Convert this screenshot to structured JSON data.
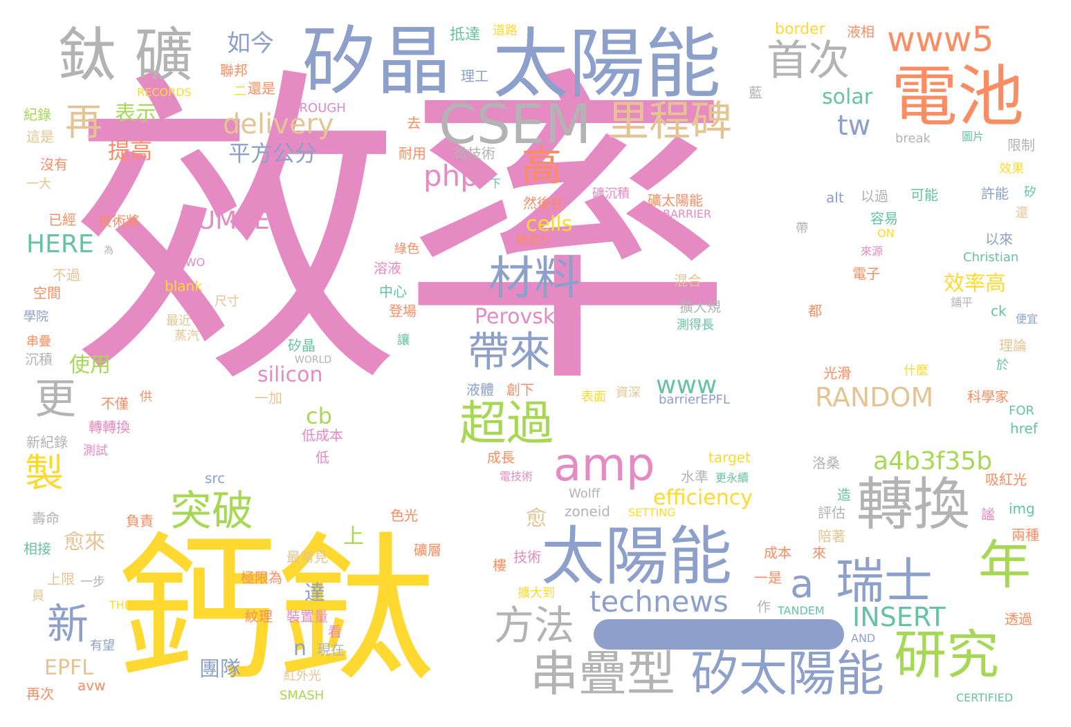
{
  "palette": {
    "pink": "#e58ac2",
    "yellow": "#ffd92f",
    "blue": "#8da0cb",
    "gray": "#b3b3b3",
    "orange": "#fc8d62",
    "green": "#a6d854",
    "tan": "#e5c494",
    "teal": "#66c2a5"
  },
  "words": [
    {
      "text": "效率",
      "color": "pink"
    },
    {
      "text": "鈣鈦",
      "color": "yellow"
    },
    {
      "text": "太陽能",
      "color": "blue"
    },
    {
      "text": "矽晶",
      "color": "blue"
    },
    {
      "text": "鈦 礦",
      "color": "gray"
    },
    {
      "text": "電池",
      "color": "orange"
    },
    {
      "text": "CSEM",
      "color": "gray"
    },
    {
      "text": "太陽能",
      "color": "blue"
    },
    {
      "text": "轉換",
      "color": "gray"
    },
    {
      "text": "研究",
      "color": "green"
    },
    {
      "text": "串疊型",
      "color": "gray"
    },
    {
      "text": "矽太陽能",
      "color": "blue"
    },
    {
      "text": "瑞士",
      "color": "blue"
    },
    {
      "text": "年",
      "color": "green"
    },
    {
      "text": "amp",
      "color": "pink"
    },
    {
      "text": "里程碑",
      "color": "tan"
    },
    {
      "text": "材料",
      "color": "blue"
    },
    {
      "text": "首次",
      "color": "gray"
    },
    {
      "text": "www5",
      "color": "orange"
    },
    {
      "text": "超過",
      "color": "green"
    },
    {
      "text": "突破",
      "color": "green"
    },
    {
      "text": "帶來",
      "color": "blue"
    },
    {
      "text": "方法",
      "color": "gray"
    },
    {
      "text": "高",
      "color": "orange"
    },
    {
      "text": "新",
      "color": "blue"
    },
    {
      "text": "更",
      "color": "gray"
    },
    {
      "text": "再",
      "color": "tan"
    },
    {
      "text": "製",
      "color": "yellow"
    },
    {
      "text": "technews",
      "color": "blue"
    },
    {
      "text": "a4b3f35b",
      "color": "green"
    },
    {
      "text": "a",
      "color": "blue"
    },
    {
      "text": "RANDOM",
      "color": "tan"
    },
    {
      "text": "INSERT",
      "color": "teal"
    },
    {
      "text": "delivery",
      "color": "tan"
    },
    {
      "text": "NUMBER",
      "color": "pink"
    },
    {
      "text": "HERE",
      "color": "teal"
    },
    {
      "text": "平方公分",
      "color": "blue"
    },
    {
      "text": "如今",
      "color": "blue"
    },
    {
      "text": "提高",
      "color": "orange"
    },
    {
      "text": "表示",
      "color": "green"
    },
    {
      "text": "php",
      "color": "pink"
    },
    {
      "text": "tw",
      "color": "blue"
    },
    {
      "text": "solar",
      "color": "teal"
    },
    {
      "text": "cells",
      "color": "yellow"
    },
    {
      "text": "Perovskite",
      "color": "pink"
    },
    {
      "text": "效率高",
      "color": "yellow"
    },
    {
      "text": "silicon",
      "color": "pink"
    },
    {
      "text": "www",
      "color": "teal"
    },
    {
      "text": "cb",
      "color": "green"
    },
    {
      "text": "使用",
      "color": "green"
    },
    {
      "text": "efficiency",
      "color": "yellow"
    },
    {
      "text": "EPFL",
      "color": "tan"
    },
    {
      "text": "團隊",
      "color": "blue"
    },
    {
      "text": "n",
      "color": "blue"
    },
    {
      "text": "愈",
      "color": "tan"
    },
    {
      "text": "愈來",
      "color": "tan"
    },
    {
      "text": "上",
      "color": "green"
    },
    {
      "text": "達",
      "color": "blue"
    },
    {
      "text": "border",
      "color": "yellow"
    },
    {
      "text": "液相",
      "color": "orange"
    },
    {
      "text": "抵達",
      "color": "teal"
    },
    {
      "text": "道路",
      "color": "yellow"
    },
    {
      "text": "理工",
      "color": "blue"
    },
    {
      "text": "聯邦",
      "color": "orange"
    },
    {
      "text": "RECORDS",
      "color": "yellow"
    },
    {
      "text": "二",
      "color": "yellow"
    },
    {
      "text": "還是",
      "color": "orange"
    },
    {
      "text": "藍",
      "color": "gray"
    },
    {
      "text": "紀錄",
      "color": "green"
    },
    {
      "text": "THROUGH",
      "color": "pink"
    },
    {
      "text": "這是",
      "color": "tan"
    },
    {
      "text": "去",
      "color": "orange"
    },
    {
      "text": "break",
      "color": "gray"
    },
    {
      "text": "圖片",
      "color": "teal"
    },
    {
      "text": "限制",
      "color": "gray"
    },
    {
      "text": "沒有",
      "color": "orange"
    },
    {
      "text": "耐用",
      "color": "orange"
    },
    {
      "text": "微技術",
      "color": "gray"
    },
    {
      "text": "效果",
      "color": "yellow"
    },
    {
      "text": "一大",
      "color": "tan"
    },
    {
      "text": "下",
      "color": "teal"
    },
    {
      "text": "礦沉積",
      "color": "pink"
    },
    {
      "text": "礦太陽能",
      "color": "orange"
    },
    {
      "text": "alt",
      "color": "blue"
    },
    {
      "text": "以過",
      "color": "gray"
    },
    {
      "text": "可能",
      "color": "teal"
    },
    {
      "text": "許能",
      "color": "blue"
    },
    {
      "text": "矽",
      "color": "teal"
    },
    {
      "text": "已經",
      "color": "orange"
    },
    {
      "text": "技術將",
      "color": "orange"
    },
    {
      "text": "然後在",
      "color": "orange"
    },
    {
      "text": "BARRIER",
      "color": "pink"
    },
    {
      "text": "容易",
      "color": "teal"
    },
    {
      "text": "還",
      "color": "tan"
    },
    {
      "text": "期潛力",
      "color": "orange"
    },
    {
      "text": "帶",
      "color": "gray"
    },
    {
      "text": "ON",
      "color": "yellow"
    },
    {
      "text": "以來",
      "color": "blue"
    },
    {
      "text": "為",
      "color": "gray"
    },
    {
      "text": "綠色",
      "color": "orange"
    },
    {
      "text": "來源",
      "color": "pink"
    },
    {
      "text": "Christian",
      "color": "teal"
    },
    {
      "text": "不過",
      "color": "tan"
    },
    {
      "text": "TWO",
      "color": "pink"
    },
    {
      "text": "溶液",
      "color": "pink"
    },
    {
      "text": "混合",
      "color": "tan"
    },
    {
      "text": "電子",
      "color": "orange"
    },
    {
      "text": "空間",
      "color": "orange"
    },
    {
      "text": "blank",
      "color": "yellow"
    },
    {
      "text": "尺寸",
      "color": "tan"
    },
    {
      "text": "中心",
      "color": "teal"
    },
    {
      "text": "擴大規",
      "color": "gray"
    },
    {
      "text": "鋪平",
      "color": "gray"
    },
    {
      "text": "學院",
      "color": "blue"
    },
    {
      "text": "最近",
      "color": "tan"
    },
    {
      "text": "登場",
      "color": "orange"
    },
    {
      "text": "測得長",
      "color": "teal"
    },
    {
      "text": "都",
      "color": "orange"
    },
    {
      "text": "ck",
      "color": "teal"
    },
    {
      "text": "便宜",
      "color": "blue"
    },
    {
      "text": "蒸汽",
      "color": "tan"
    },
    {
      "text": "串疊",
      "color": "orange"
    },
    {
      "text": "矽晶",
      "color": "teal"
    },
    {
      "text": "讓",
      "color": "teal"
    },
    {
      "text": "理論",
      "color": "tan"
    },
    {
      "text": "沉積",
      "color": "gray"
    },
    {
      "text": "WORLD",
      "color": "gray"
    },
    {
      "text": "於",
      "color": "teal"
    },
    {
      "text": "光滑",
      "color": "orange"
    },
    {
      "text": "什麼",
      "color": "yellow"
    },
    {
      "text": "不僅",
      "color": "orange"
    },
    {
      "text": "供",
      "color": "orange"
    },
    {
      "text": "一加",
      "color": "tan"
    },
    {
      "text": "液體",
      "color": "blue"
    },
    {
      "text": "創下",
      "color": "orange"
    },
    {
      "text": "表面",
      "color": "yellow"
    },
    {
      "text": "資深",
      "color": "tan"
    },
    {
      "text": "barrierEPFL",
      "color": "blue"
    },
    {
      "text": "科學家",
      "color": "orange"
    },
    {
      "text": "轉轉換",
      "color": "pink"
    },
    {
      "text": "FOR",
      "color": "teal"
    },
    {
      "text": "新紀錄",
      "color": "gray"
    },
    {
      "text": "低成本",
      "color": "pink"
    },
    {
      "text": "href",
      "color": "teal"
    },
    {
      "text": "測試",
      "color": "pink"
    },
    {
      "text": "低",
      "color": "pink"
    },
    {
      "text": "target",
      "color": "yellow"
    },
    {
      "text": "成長",
      "color": "orange"
    },
    {
      "text": "洛桑",
      "color": "gray"
    },
    {
      "text": "src",
      "color": "blue"
    },
    {
      "text": "電技術",
      "color": "pink"
    },
    {
      "text": "水準",
      "color": "gray"
    },
    {
      "text": "更永續",
      "color": "teal"
    },
    {
      "text": "吸紅光",
      "color": "orange"
    },
    {
      "text": "Wolff",
      "color": "gray"
    },
    {
      "text": "造",
      "color": "teal"
    },
    {
      "text": "壽命",
      "color": "gray"
    },
    {
      "text": "負責",
      "color": "orange"
    },
    {
      "text": "色光",
      "color": "orange"
    },
    {
      "text": "zoneid",
      "color": "gray"
    },
    {
      "text": "SETTING",
      "color": "yellow"
    },
    {
      "text": "評估",
      "color": "gray"
    },
    {
      "text": "img",
      "color": "teal"
    },
    {
      "text": "謐",
      "color": "pink"
    },
    {
      "text": "相接",
      "color": "teal"
    },
    {
      "text": "礦層",
      "color": "orange"
    },
    {
      "text": "陪著",
      "color": "tan"
    },
    {
      "text": "兩種",
      "color": "orange"
    },
    {
      "text": "最常見",
      "color": "tan"
    },
    {
      "text": "樓",
      "color": "orange"
    },
    {
      "text": "技術",
      "color": "pink"
    },
    {
      "text": "成本",
      "color": "orange"
    },
    {
      "text": "來",
      "color": "orange"
    },
    {
      "text": "上限",
      "color": "tan"
    },
    {
      "text": "一步",
      "color": "gray"
    },
    {
      "text": "極限為",
      "color": "orange"
    },
    {
      "text": "一是",
      "color": "orange"
    },
    {
      "text": "員",
      "color": "tan"
    },
    {
      "text": "擴大到",
      "color": "yellow"
    },
    {
      "text": "THE",
      "color": "yellow"
    },
    {
      "text": "紋理",
      "color": "orange"
    },
    {
      "text": "裝置量",
      "color": "pink"
    },
    {
      "text": "作",
      "color": "gray"
    },
    {
      "text": "TANDEM",
      "color": "teal"
    },
    {
      "text": "透過",
      "color": "orange"
    },
    {
      "text": "有望",
      "color": "blue"
    },
    {
      "text": "看",
      "color": "pink"
    },
    {
      "text": "現在",
      "color": "gray"
    },
    {
      "text": "AND",
      "color": "blue"
    },
    {
      "text": "avw",
      "color": "orange"
    },
    {
      "text": "紅外光",
      "color": "tan"
    },
    {
      "text": "再次",
      "color": "orange"
    },
    {
      "text": "SMASH",
      "color": "green"
    },
    {
      "text": "CERTIFIED",
      "color": "teal"
    }
  ]
}
